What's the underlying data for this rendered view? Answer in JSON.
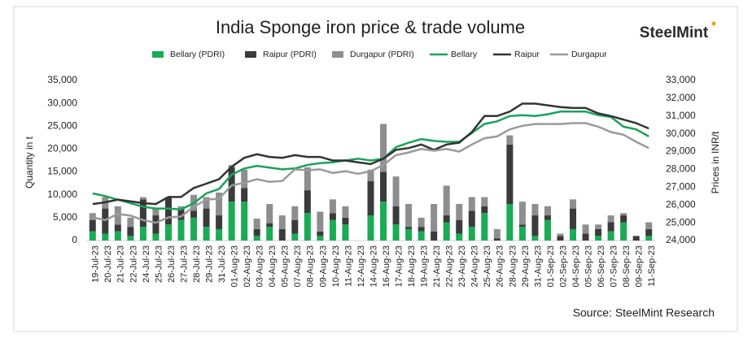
{
  "chart_data": {
    "type": "bar",
    "title": "India Sponge iron price & trade volume",
    "brand": "SteelMint",
    "y_label": "Quantity in t",
    "y2_label": "Prices in INR/t",
    "source": "Source: SteelMint Research",
    "categories": [
      "19-Jul-23",
      "20-Jul-23",
      "21-Jul-23",
      "22-Jul-23",
      "24-Jul-23",
      "25-Jul-23",
      "26-Jul-23",
      "27-Jul-23",
      "28-Jul-23",
      "29-Jul-23",
      "31-Jul-23",
      "01-Aug-23",
      "02-Aug-23",
      "03-Aug-23",
      "04-Aug-23",
      "05-Aug-23",
      "07-Aug-23",
      "08-Aug-23",
      "09-Aug-23",
      "10-Aug-23",
      "11-Aug-23",
      "12-Aug-23",
      "14-Aug-23",
      "16-Aug-23",
      "17-Aug-23",
      "18-Aug-23",
      "19-Aug-23",
      "21-Aug-23",
      "22-Aug-23",
      "23-Aug-23",
      "24-Aug-23",
      "25-Aug-23",
      "26-Aug-23",
      "28-Aug-23",
      "29-Aug-23",
      "31-Aug-23",
      "01-Sep-23",
      "02-Sep-23",
      "04-Sep-23",
      "05-Sep-23",
      "06-Sep-23",
      "07-Sep-23",
      "08-Sep-23",
      "09-Sep-23",
      "11-Sep-23"
    ],
    "series": [
      {
        "name": "Bellary (PDRI)",
        "type": "bar",
        "color": "#1aab55",
        "values": [
          2000,
          1500,
          2000,
          1000,
          3000,
          1500,
          3500,
          4500,
          5000,
          3000,
          2500,
          8500,
          8500,
          1000,
          3000,
          0,
          1500,
          6000,
          1000,
          4500,
          3500,
          0,
          5500,
          8500,
          3500,
          2500,
          2000,
          0,
          4000,
          1500,
          3000,
          6000,
          0,
          8000,
          3000,
          1000,
          4500,
          0,
          2500,
          0,
          1000,
          2000,
          4000,
          0,
          1000
        ]
      },
      {
        "name": "Raipur (PDRI)",
        "type": "bar",
        "color": "#3b3b3b",
        "values": [
          2500,
          5500,
          1500,
          2000,
          6000,
          4000,
          6000,
          2500,
          1500,
          4000,
          3000,
          7500,
          3000,
          1500,
          800,
          2500,
          3000,
          5000,
          1000,
          1500,
          1500,
          0,
          7500,
          6500,
          4000,
          500,
          1000,
          2000,
          1500,
          3000,
          3500,
          1500,
          500,
          13000,
          500,
          4500,
          1000,
          1000,
          4500,
          1500,
          1500,
          2000,
          1500,
          1000,
          1500
        ]
      },
      {
        "name": "Durgapur (PDRI)",
        "type": "bar",
        "color": "#8e8e8e",
        "values": [
          1500,
          2500,
          4000,
          2000,
          500,
          1500,
          0,
          500,
          3500,
          2500,
          5000,
          500,
          4000,
          2300,
          4200,
          3000,
          3000,
          5000,
          4300,
          3000,
          2500,
          0,
          2500,
          10500,
          6500,
          5000,
          2000,
          6000,
          6500,
          3500,
          3000,
          2000,
          2000,
          2000,
          5000,
          2500,
          2000,
          500,
          2000,
          2000,
          1000,
          1500,
          500,
          0,
          1500
        ]
      },
      {
        "name": "Bellary",
        "type": "line",
        "axis": "y2",
        "color": "#1aa35a",
        "values": [
          26650,
          26500,
          26300,
          26100,
          25900,
          25800,
          25800,
          25750,
          26100,
          26650,
          26900,
          27700,
          28050,
          28200,
          28100,
          28000,
          28050,
          28250,
          28350,
          28400,
          28500,
          28600,
          28500,
          28600,
          29250,
          29500,
          29700,
          29600,
          29550,
          29550,
          30050,
          30550,
          30700,
          31000,
          31050,
          31000,
          31100,
          31250,
          31250,
          31250,
          31050,
          30950,
          30400,
          30250,
          29850
        ]
      },
      {
        "name": "Raipur",
        "type": "line",
        "axis": "y2",
        "color": "#333333",
        "values": [
          26050,
          26150,
          26300,
          26200,
          26100,
          26050,
          26450,
          26450,
          26950,
          27200,
          27450,
          28150,
          28650,
          28850,
          28700,
          28650,
          28800,
          28700,
          28700,
          28500,
          28500,
          28400,
          28300,
          28600,
          29100,
          29200,
          29400,
          29100,
          29400,
          29500,
          30100,
          31000,
          31000,
          31250,
          31700,
          31700,
          31600,
          31500,
          31450,
          31450,
          31150,
          31000,
          30800,
          30600,
          30300
        ]
      },
      {
        "name": "Durgapur",
        "type": "line",
        "axis": "y2",
        "color": "#9a9a9a",
        "values": [
          25300,
          25150,
          25500,
          25400,
          25150,
          25000,
          25300,
          25350,
          25900,
          26300,
          26350,
          27100,
          27250,
          27450,
          27300,
          27350,
          28000,
          27950,
          28000,
          27800,
          27900,
          27750,
          27900,
          28250,
          28800,
          28950,
          29150,
          29050,
          29150,
          29000,
          29400,
          29750,
          29850,
          30250,
          30450,
          30550,
          30550,
          30550,
          30600,
          30600,
          30400,
          30100,
          29950,
          29550,
          29200
        ]
      }
    ],
    "ylim": [
      0,
      35000
    ],
    "yticks": [
      0,
      {
        "value": 5000,
        "label": "5,000"
      },
      {
        "value": 10000,
        "label": "10,000"
      },
      {
        "value": 15000,
        "label": "15,000"
      },
      {
        "value": 20000,
        "label": "20,000"
      },
      {
        "value": 25000,
        "label": "25,000"
      },
      {
        "value": 30000,
        "label": "30,000"
      },
      {
        "value": 35000,
        "label": "35,000"
      }
    ],
    "y2lim": [
      24000,
      33000
    ],
    "y2ticks": [
      {
        "value": 24000,
        "label": "24,000"
      },
      {
        "value": 25000,
        "label": "25,000"
      },
      {
        "value": 26000,
        "label": "26,000"
      },
      {
        "value": 27000,
        "label": "27,000"
      },
      {
        "value": 28000,
        "label": "28,000"
      },
      {
        "value": 29000,
        "label": "29,000"
      },
      {
        "value": 30000,
        "label": "30,000"
      },
      {
        "value": 31000,
        "label": "31,000"
      },
      {
        "value": 32000,
        "label": "32,000"
      },
      {
        "value": 33000,
        "label": "33,000"
      }
    ],
    "grid": false,
    "legend": "top"
  }
}
